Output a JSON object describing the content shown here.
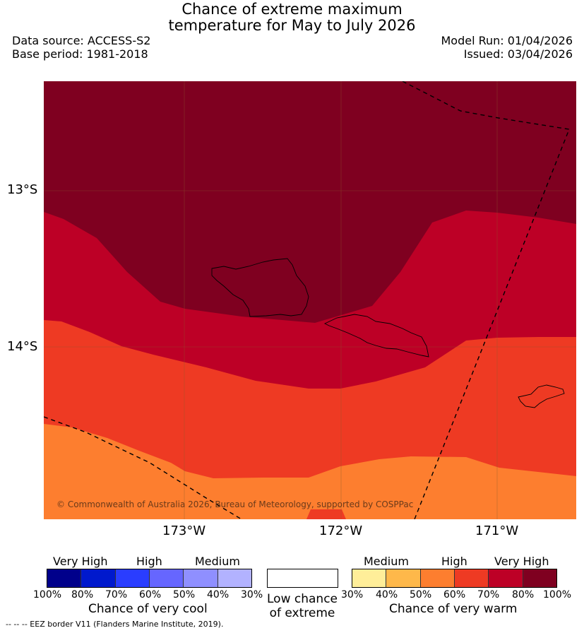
{
  "header": {
    "title_line1": "Chance of extreme maximum",
    "title_line2": "temperature for May to July 2026",
    "data_source": "Data source: ACCESS-S2",
    "base_period": "Base period: 1981-2018",
    "model_run": "Model Run: 01/04/2026",
    "issued": "Issued: 03/04/2026"
  },
  "map": {
    "lat_labels": [
      "13°S",
      "14°S"
    ],
    "lon_labels": [
      "173°W",
      "172°W",
      "171°W"
    ],
    "copyright": "© Commonwealth of Australia 2026, Bureau of Meteorology, supported by COSPPac",
    "colors": {
      "very_warm_90": "#7f0020",
      "very_warm_70": "#bd0026",
      "high_60": "#ee3a23",
      "high_50": "#fd7e2f"
    }
  },
  "legend": {
    "cool": {
      "heads": [
        "Very High",
        "High",
        "Medium"
      ],
      "ticks": [
        "100%",
        "80%",
        "70%",
        "60%",
        "50%",
        "40%",
        "30%"
      ],
      "caption": "Chance of very cool",
      "colors": [
        "#00008b",
        "#0019cd",
        "#2a3dff",
        "#6666ff",
        "#8f8fff",
        "#b2b2ff"
      ]
    },
    "low": {
      "caption_line1": "Low chance",
      "caption_line2": "of extreme"
    },
    "warm": {
      "heads": [
        "Medium",
        "High",
        "Very High"
      ],
      "ticks": [
        "30%",
        "40%",
        "50%",
        "60%",
        "70%",
        "80%",
        "100%"
      ],
      "caption": "Chance of very warm",
      "colors": [
        "#ffee99",
        "#feb84a",
        "#fd7e2f",
        "#ee3a23",
        "#bd0026",
        "#7f0020"
      ]
    }
  },
  "footer": {
    "eez_note": "--  --  -- EEZ border V11 (Flanders Marine Institute, 2019)."
  }
}
